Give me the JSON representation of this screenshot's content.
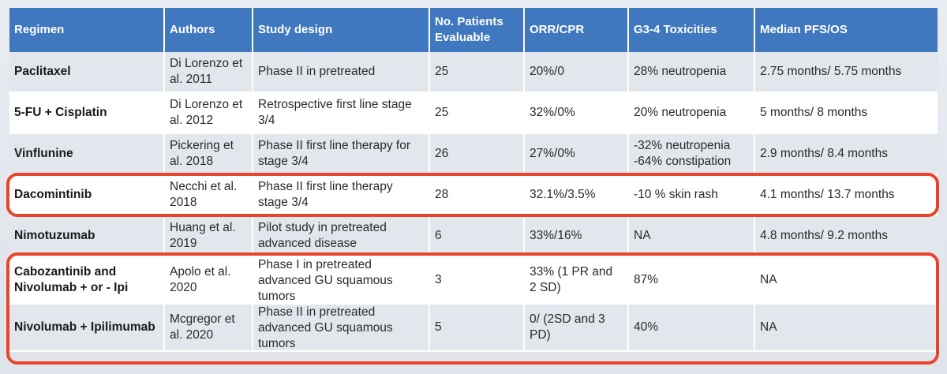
{
  "accent_colors": {
    "header_background": "#3f78bf",
    "highlight_border": "#e8442b"
  },
  "table": {
    "headers": [
      "Regimen",
      "Authors",
      "Study design",
      "No. Patients Evaluable",
      "ORR/CPR",
      "G3-4 Toxicities",
      "Median PFS/OS"
    ],
    "rows": [
      [
        "Paclitaxel",
        "Di Lorenzo et al. 2011",
        "Phase II in pretreated",
        "25",
        "20%/0",
        "28% neutropenia",
        "2.75 months/ 5.75 months"
      ],
      [
        "5-FU + Cisplatin",
        "Di Lorenzo et al. 2012",
        "Retrospective first line stage 3/4",
        "25",
        "32%/0%",
        "20% neutropenia",
        "5 months/ 8 months"
      ],
      [
        "Vinflunine",
        "Pickering et al. 2018",
        "Phase II first line therapy for stage 3/4",
        "26",
        "27%/0%",
        "-32% neutropenia -64% constipation",
        "2.9 months/ 8.4 months"
      ],
      [
        "Dacomintinib",
        "Necchi et al. 2018",
        "Phase II first line therapy stage 3/4",
        "28",
        "32.1%/3.5%",
        "-10 % skin rash",
        "4.1 months/ 13.7 months"
      ],
      [
        "Nimotuzumab",
        "Huang et al. 2019",
        "Pilot study in pretreated advanced disease",
        "6",
        "33%/16%",
        "NA",
        "4.8 months/ 9.2 months"
      ],
      [
        "Cabozantinib and Nivolumab + or - Ipi",
        "Apolo et al. 2020",
        "Phase I in pretreated advanced GU squamous tumors",
        "3",
        "33% (1 PR and 2 SD)",
        "87%",
        "NA"
      ],
      [
        "Nivolumab + Ipilimumab",
        "Mcgregor et al. 2020",
        "Phase II in pretreated advanced GU squamous tumors",
        "5",
        "0/ (2SD and 3 PD)",
        "40%",
        "NA"
      ]
    ]
  }
}
